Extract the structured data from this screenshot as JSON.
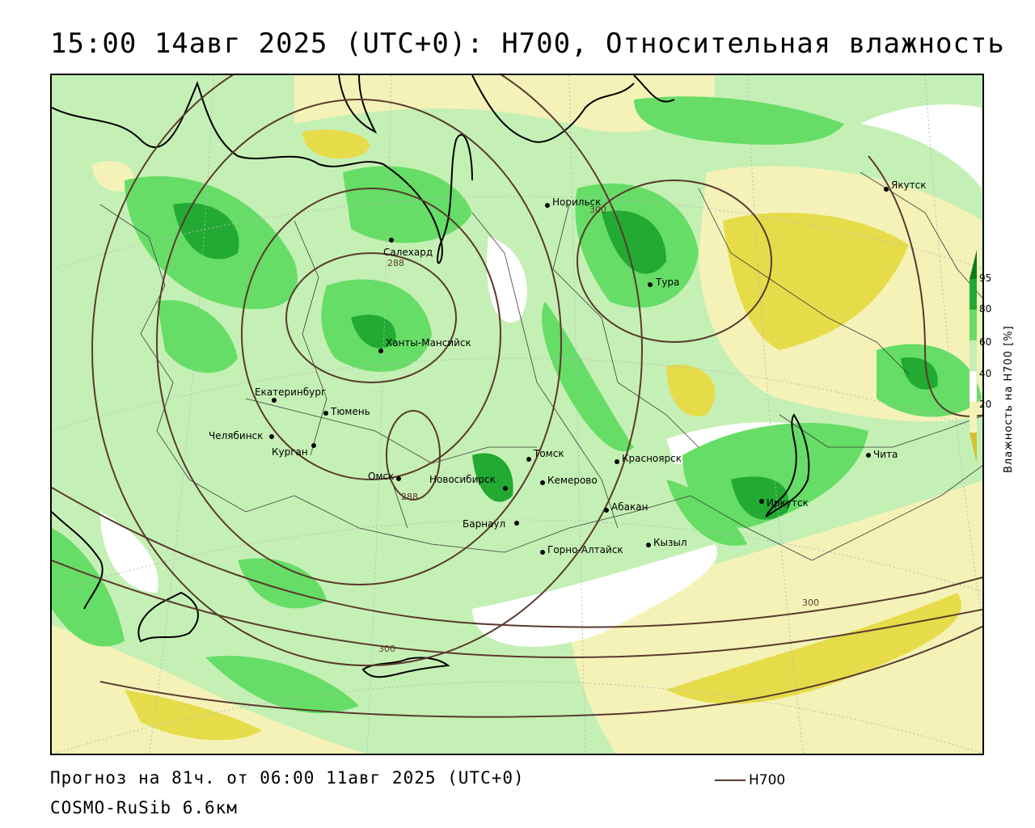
{
  "title": "15:00 14авг 2025 (UTC+0): H700, Относительная влажность",
  "forecast": "Прогноз на 81ч. от 06:00 11авг 2025 (UTC+0)",
  "model": "COSMO-RuSib 6.6км",
  "line_legend": {
    "label": "H700",
    "color": "#5a3a2e"
  },
  "legend": {
    "axis_label": "Влажность на H700 [%]",
    "ticks": [
      "95",
      "80",
      "60",
      "40",
      "20"
    ],
    "colors": {
      "very_dry": "#d8c030",
      "dry": "#e8e070",
      "light_dry": "#f5f2b8",
      "neutral": "#ffffff",
      "light_moist": "#c5f0b5",
      "moist": "#66dd66",
      "wet": "#22aa33",
      "very_wet": "#0a7a1a"
    }
  },
  "contour_labels": [
    "300",
    "288",
    "288",
    "300",
    "300"
  ],
  "cities": [
    "Норильск",
    "Якутск",
    "Салехард",
    "Тура",
    "Ханты-Мансийск",
    "Екатеринбург",
    "Тюмень",
    "Челябинск",
    "Курган",
    "Омск",
    "Новосибирск",
    "Томск",
    "Кемерово",
    "Красноярск",
    "Барнаул",
    "Абакан",
    "Иркутск",
    "Чита",
    "Кызыл",
    "Горно-Алтайск"
  ]
}
